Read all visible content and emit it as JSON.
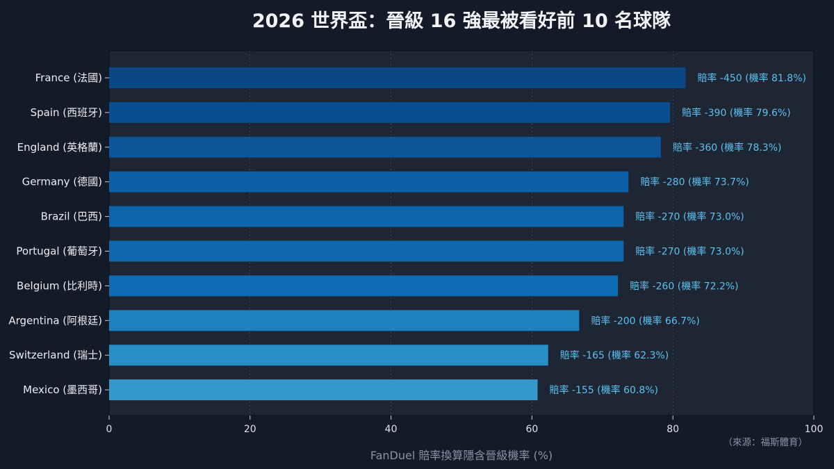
{
  "chart_data": {
    "type": "bar",
    "orientation": "horizontal",
    "title": "2026 世界盃：晉級 16 強最被看好前 10 名球隊",
    "xlabel": "FanDuel 賠率換算隱含晉級機率 (%)",
    "ylabel": "",
    "xlim": [
      0,
      100
    ],
    "xticks": [
      0,
      20,
      40,
      60,
      80,
      100
    ],
    "grid": true,
    "grid_axis": "x",
    "legend": "none",
    "categories": [
      "France (法國)",
      "Spain (西班牙)",
      "England (英格蘭)",
      "Germany (德國)",
      "Brazil (巴西)",
      "Portugal (葡萄牙)",
      "Belgium (比利時)",
      "Argentina (阿根廷)",
      "Switzerland (瑞士)",
      "Mexico (墨西哥)"
    ],
    "values": [
      81.8,
      79.6,
      78.3,
      73.7,
      73.0,
      73.0,
      72.2,
      66.7,
      62.3,
      60.8
    ],
    "data_labels": [
      "賠率 -450 (機率 81.8%)",
      "賠率 -390 (機率 79.6%)",
      "賠率 -360 (機率 78.3%)",
      "賠率 -280 (機率 73.7%)",
      "賠率 -270 (機率 73.0%)",
      "賠率 -270 (機率 73.0%)",
      "賠率 -260 (機率 72.2%)",
      "賠率 -200 (機率 66.7%)",
      "賠率 -165 (機率 62.3%)",
      "賠率 -155 (機率 60.8%)"
    ],
    "bar_colors": [
      "#0a4784",
      "#0b4e90",
      "#0b5598",
      "#0c60a7",
      "#0d65ac",
      "#0d68b0",
      "#0f6cb4",
      "#1d80bf",
      "#2b8fc7",
      "#3699cc"
    ]
  },
  "source_note": "（來源：福斯體育）",
  "colors": {
    "background": "#131a28",
    "plot_background": "#1e2533",
    "plot_border": "#0e1420",
    "grid": "#566073",
    "axis_tick": "#c9ced8",
    "data_label": "#5cc2f2"
  }
}
